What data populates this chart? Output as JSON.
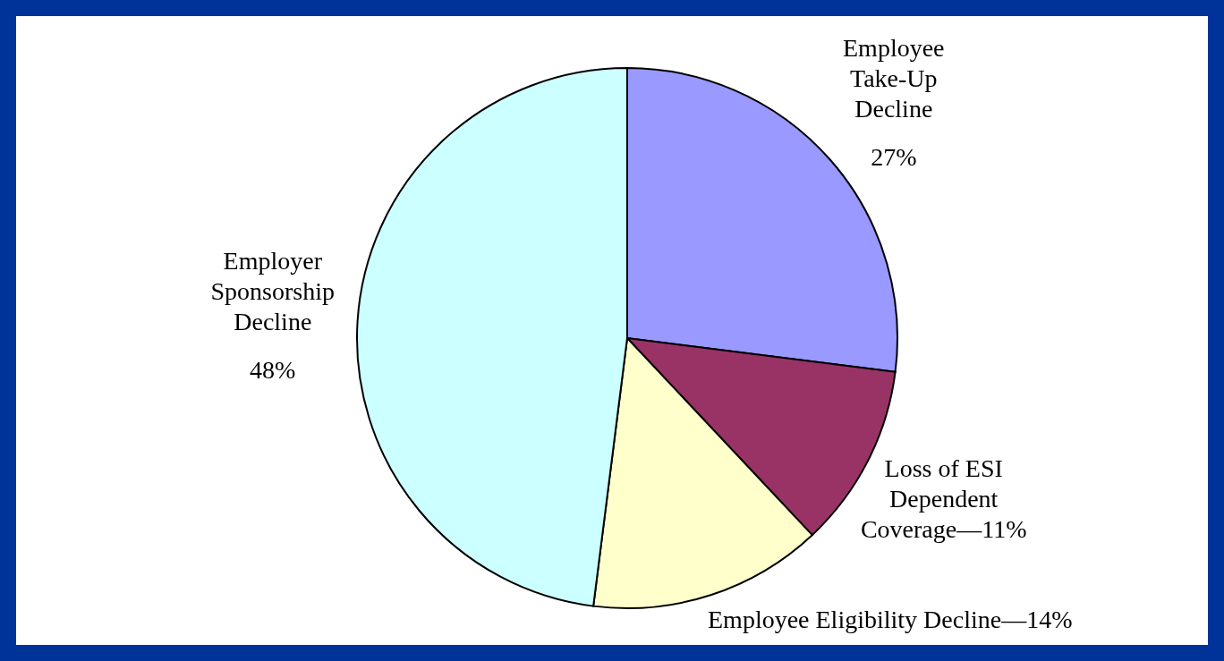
{
  "chart_data": {
    "type": "pie",
    "categories": [
      "Employee Take-Up Decline",
      "Loss of ESI Dependent Coverage—11%",
      "Employee Eligibility Decline—14%",
      "Employer Sponsorship Decline"
    ],
    "values": [
      27,
      11,
      14,
      48
    ],
    "colors": [
      "#9999ff",
      "#993366",
      "#ffffcc",
      "#ccffff"
    ],
    "value_labels": [
      "27%",
      null,
      null,
      "48%"
    ]
  }
}
